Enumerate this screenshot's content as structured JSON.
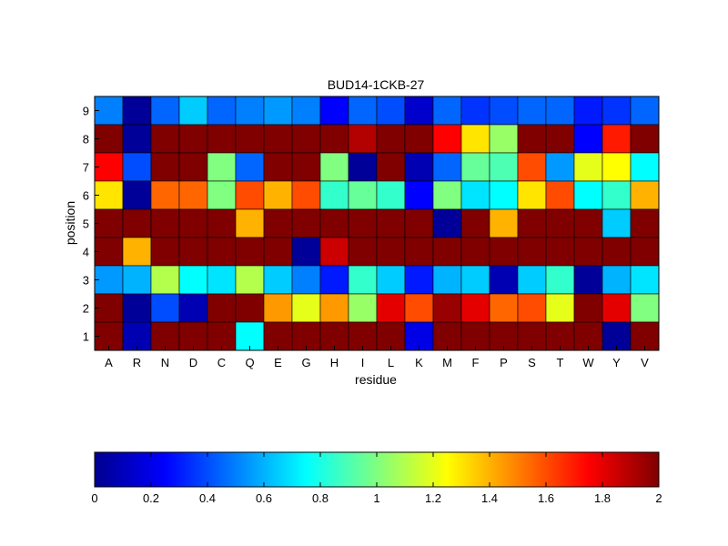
{
  "chart_data": {
    "type": "heatmap",
    "title": "BUD14-1CKB-27",
    "xlabel": "residue",
    "ylabel": "position",
    "x_categories": [
      "A",
      "R",
      "N",
      "D",
      "C",
      "Q",
      "E",
      "G",
      "H",
      "I",
      "L",
      "K",
      "M",
      "F",
      "P",
      "S",
      "T",
      "W",
      "Y",
      "V"
    ],
    "y_categories": [
      "9",
      "8",
      "7",
      "6",
      "5",
      "4",
      "3",
      "2",
      "1"
    ],
    "values": [
      [
        0.5,
        0.05,
        0.45,
        0.65,
        0.45,
        0.5,
        0.55,
        0.5,
        0.25,
        0.45,
        0.4,
        0.15,
        0.45,
        0.35,
        0.4,
        0.45,
        0.45,
        0.3,
        0.35,
        0.45
      ],
      [
        2.0,
        0.05,
        2.0,
        2.0,
        2.0,
        2.0,
        2.0,
        2.0,
        2.0,
        1.9,
        2.0,
        2.0,
        1.75,
        1.3,
        1.05,
        2.0,
        2.0,
        0.25,
        1.7,
        2.0
      ],
      [
        1.75,
        0.4,
        2.0,
        2.0,
        1.0,
        0.45,
        2.0,
        2.0,
        1.0,
        0.05,
        2.0,
        0.1,
        0.45,
        0.95,
        0.9,
        1.6,
        0.55,
        1.2,
        1.25,
        0.75
      ],
      [
        1.3,
        0.05,
        1.55,
        1.55,
        1.0,
        1.6,
        1.4,
        1.6,
        0.85,
        0.95,
        0.85,
        0.25,
        1.0,
        0.7,
        0.75,
        1.3,
        1.6,
        0.75,
        0.85,
        1.4
      ],
      [
        2.0,
        2.0,
        2.0,
        2.0,
        2.0,
        1.4,
        2.0,
        2.0,
        2.0,
        2.0,
        2.0,
        2.0,
        0.05,
        2.0,
        1.4,
        2.0,
        2.0,
        2.0,
        0.65,
        2.0
      ],
      [
        2.0,
        1.4,
        2.0,
        2.0,
        2.0,
        2.0,
        2.0,
        0.05,
        1.85,
        2.0,
        2.0,
        2.0,
        2.0,
        2.0,
        2.0,
        2.0,
        2.0,
        2.0,
        2.0,
        2.0
      ],
      [
        0.55,
        0.6,
        1.1,
        0.75,
        0.7,
        1.1,
        0.65,
        0.5,
        0.3,
        0.85,
        0.65,
        0.3,
        0.6,
        0.65,
        0.1,
        0.65,
        0.85,
        0.05,
        0.6,
        0.7
      ],
      [
        2.0,
        0.05,
        0.4,
        0.1,
        2.0,
        2.0,
        1.45,
        1.2,
        1.45,
        1.05,
        1.8,
        1.6,
        1.95,
        1.8,
        1.55,
        1.6,
        1.2,
        2.0,
        1.8,
        1.0
      ],
      [
        2.0,
        0.1,
        2.0,
        2.0,
        2.0,
        0.75,
        2.0,
        2.0,
        2.0,
        2.0,
        2.0,
        0.2,
        2.0,
        2.0,
        2.0,
        2.0,
        2.0,
        2.0,
        0.05,
        2.0
      ]
    ],
    "colormap": "jet",
    "color_range": [
      0,
      2
    ],
    "colorbar": {
      "orientation": "horizontal",
      "placement": "bottom",
      "ticks": [
        0,
        0.2,
        0.4,
        0.6,
        0.8,
        1,
        1.2,
        1.4,
        1.6,
        1.8,
        2
      ],
      "tick_labels": [
        "0",
        "0.2",
        "0.4",
        "0.6",
        "0.8",
        "1",
        "1.2",
        "1.4",
        "1.6",
        "1.8",
        "2"
      ]
    },
    "grid": false
  }
}
